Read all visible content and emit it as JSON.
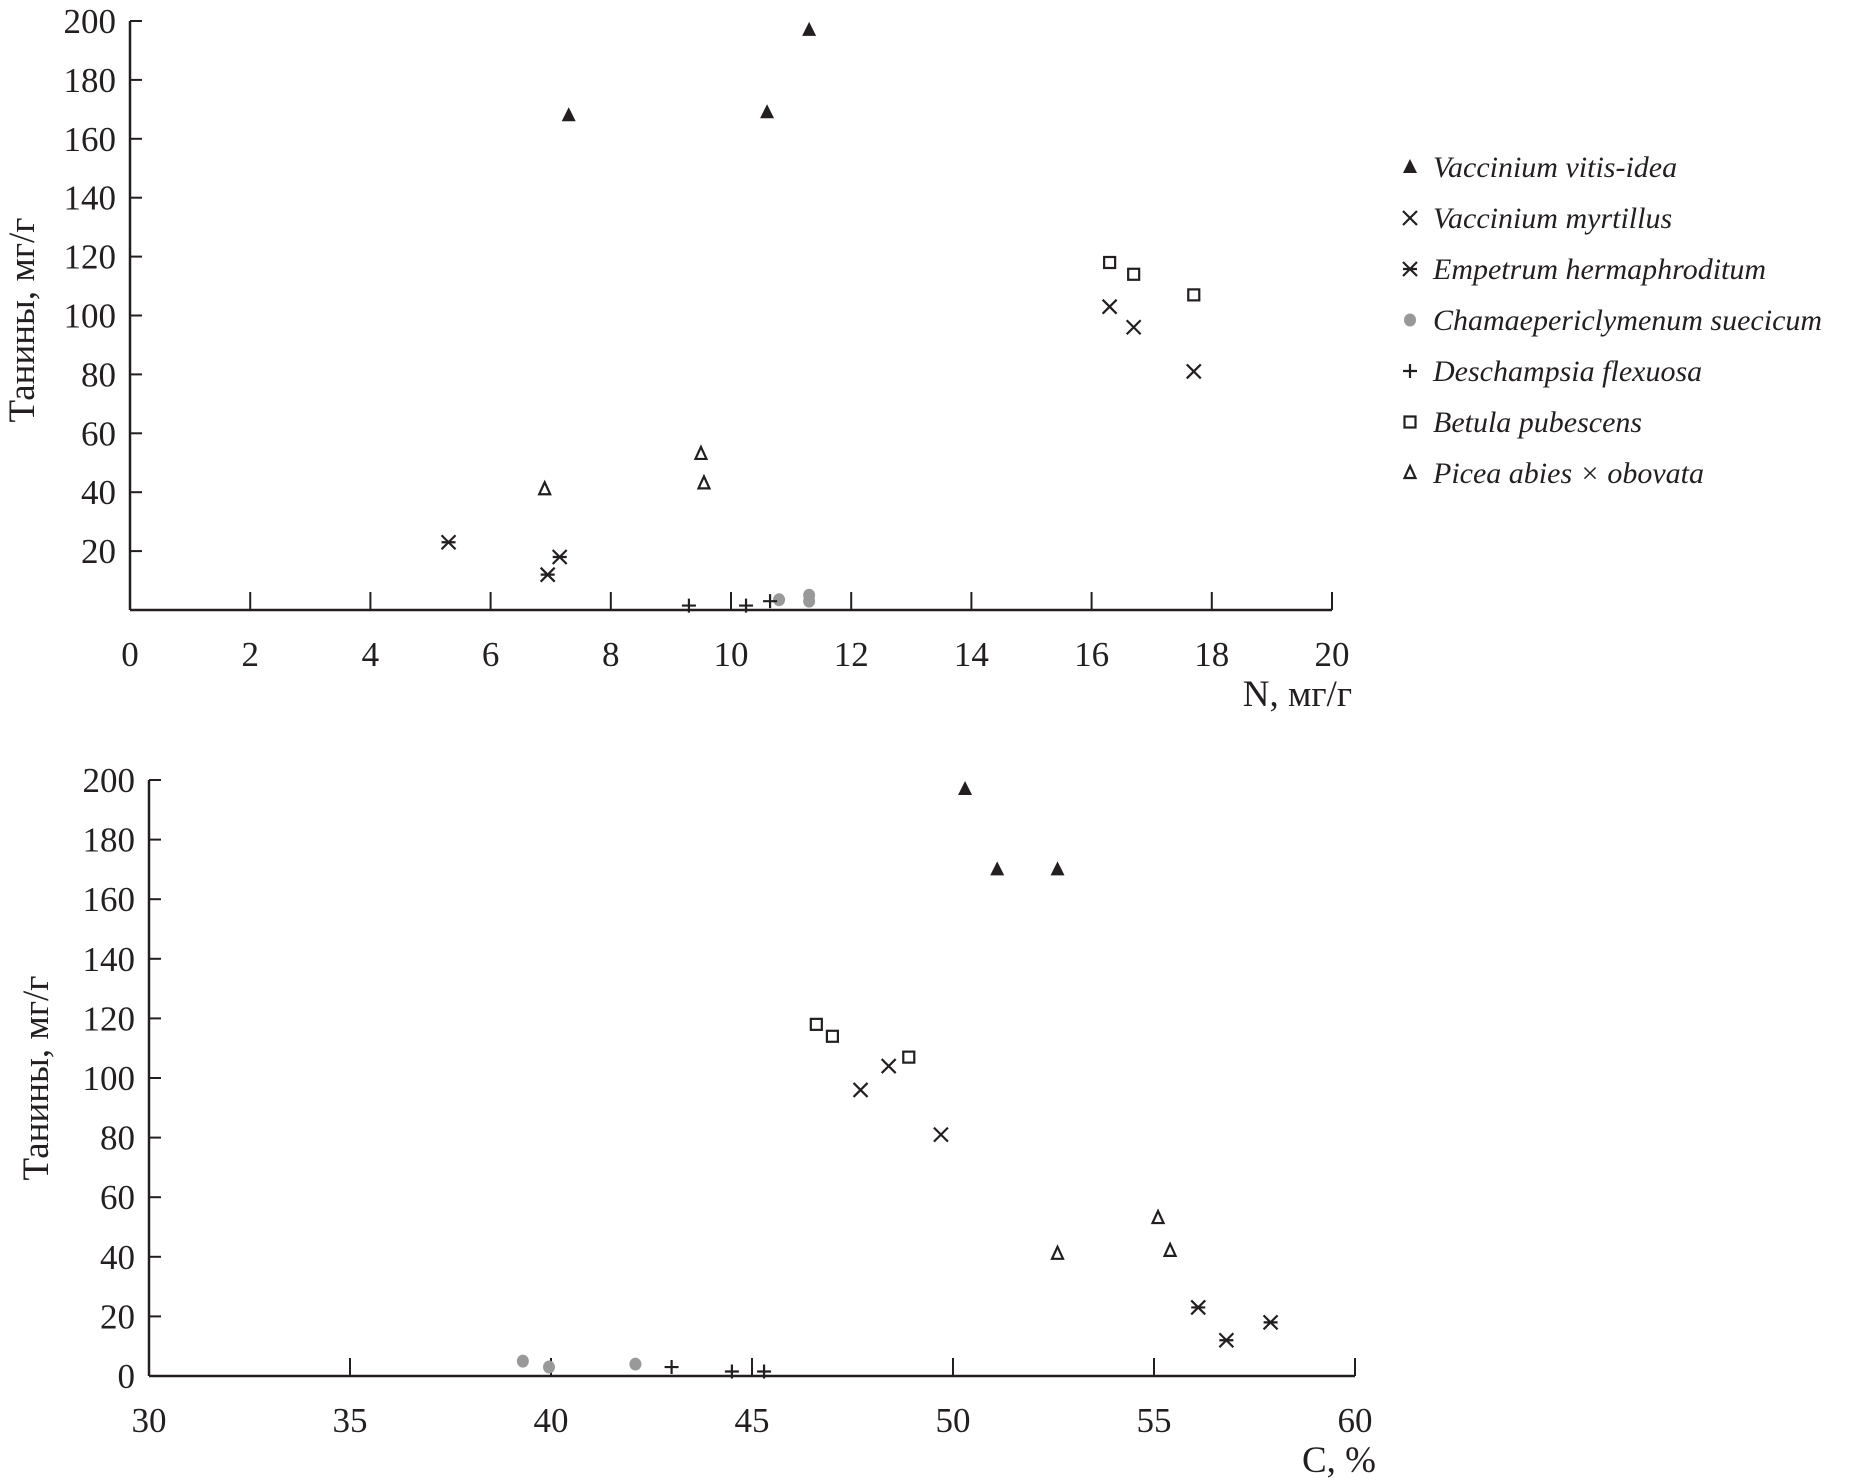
{
  "legend": [
    {
      "name": "Vaccinium vitis-idea",
      "marker": "filled-triangle",
      "color": "#231f20"
    },
    {
      "name": "Vaccinium myrtillus",
      "marker": "x",
      "color": "#231f20"
    },
    {
      "name": "Empetrum hermaphroditum",
      "marker": "asterisk",
      "color": "#231f20"
    },
    {
      "name": "Chamaepericlymenum suecicum",
      "marker": "filled-circle",
      "color": "#999999"
    },
    {
      "name": "Deschampsia  flexuosa",
      "marker": "plus",
      "color": "#231f20"
    },
    {
      "name": "Betula pubescens",
      "marker": "open-square",
      "color": "#231f20"
    },
    {
      "name": "Picea abies × obovata",
      "marker": "open-triangle",
      "color": "#231f20"
    }
  ],
  "chart_data": [
    {
      "type": "scatter",
      "xlabel": "N, мг/г",
      "ylabel": "Танины, мг/г",
      "xlim": [
        0,
        20
      ],
      "ylim": [
        0,
        200
      ],
      "xticks": [
        0,
        2,
        4,
        6,
        8,
        10,
        12,
        14,
        16,
        18,
        20
      ],
      "yticks": [
        20,
        40,
        60,
        80,
        100,
        120,
        140,
        160,
        180,
        200
      ],
      "grid": false,
      "legend_position": "right",
      "series": [
        {
          "name": "Vaccinium vitis-idea",
          "points": [
            [
              7.3,
              168
            ],
            [
              10.6,
              169
            ],
            [
              11.3,
              197
            ]
          ]
        },
        {
          "name": "Vaccinium myrtillus",
          "points": [
            [
              16.3,
              103
            ],
            [
              16.7,
              96
            ],
            [
              17.7,
              81
            ]
          ]
        },
        {
          "name": "Empetrum hermaphroditum",
          "points": [
            [
              5.3,
              23
            ],
            [
              6.95,
              12
            ],
            [
              7.15,
              18
            ]
          ]
        },
        {
          "name": "Chamaepericlymenum suecicum",
          "points": [
            [
              10.8,
              3.5
            ],
            [
              11.3,
              5
            ],
            [
              11.3,
              3
            ]
          ]
        },
        {
          "name": "Deschampsia  flexuosa",
          "points": [
            [
              9.3,
              1.5
            ],
            [
              10.25,
              1.5
            ],
            [
              10.65,
              3
            ]
          ]
        },
        {
          "name": "Betula pubescens",
          "points": [
            [
              16.3,
              118
            ],
            [
              16.7,
              114
            ],
            [
              17.7,
              107
            ]
          ]
        },
        {
          "name": "Picea abies × obovata",
          "points": [
            [
              6.9,
              41
            ],
            [
              9.5,
              53
            ],
            [
              9.55,
              43
            ]
          ]
        }
      ]
    },
    {
      "type": "scatter",
      "xlabel": "C, %",
      "ylabel": "Танины, мг/г",
      "xlim": [
        30,
        60
      ],
      "ylim": [
        0,
        200
      ],
      "xticks": [
        30,
        35,
        40,
        45,
        50,
        55,
        60
      ],
      "yticks": [
        0,
        20,
        40,
        60,
        80,
        100,
        120,
        140,
        160,
        180,
        200
      ],
      "grid": false,
      "series": [
        {
          "name": "Vaccinium vitis-idea",
          "points": [
            [
              50.3,
              197
            ],
            [
              51.1,
              170
            ],
            [
              52.6,
              170
            ]
          ]
        },
        {
          "name": "Vaccinium myrtillus",
          "points": [
            [
              47.7,
              96
            ],
            [
              48.4,
              104
            ],
            [
              49.7,
              81
            ]
          ]
        },
        {
          "name": "Empetrum hermaphroditum",
          "points": [
            [
              56.1,
              23
            ],
            [
              56.8,
              12
            ],
            [
              57.9,
              18
            ]
          ]
        },
        {
          "name": "Chamaepericlymenum suecicum",
          "points": [
            [
              39.3,
              5
            ],
            [
              39.95,
              3
            ],
            [
              42.1,
              4
            ]
          ]
        },
        {
          "name": "Deschampsia  flexuosa",
          "points": [
            [
              43.0,
              3
            ],
            [
              44.5,
              1.5
            ],
            [
              45.3,
              1.5
            ]
          ]
        },
        {
          "name": "Betula pubescens",
          "points": [
            [
              46.6,
              118
            ],
            [
              47.0,
              114
            ],
            [
              48.9,
              107
            ]
          ]
        },
        {
          "name": "Picea abies × obovata",
          "points": [
            [
              52.6,
              41
            ],
            [
              55.1,
              53
            ],
            [
              55.4,
              42
            ]
          ]
        }
      ]
    }
  ]
}
